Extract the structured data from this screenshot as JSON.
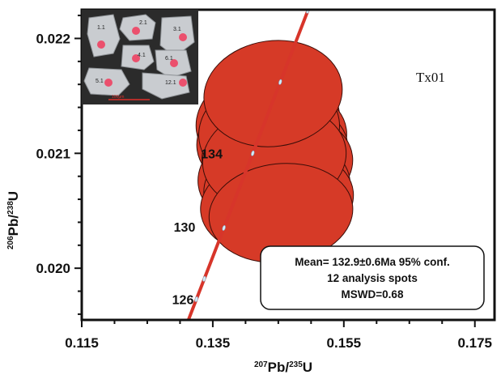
{
  "chart_data": {
    "type": "scatter",
    "subtype": "concordia",
    "sample_label": "Tx01",
    "xlabel_parts": {
      "sup": "207",
      "main": "Pb/",
      "sup2": "235",
      "main2": "U"
    },
    "ylabel_parts": {
      "sup": "206",
      "main": "Pb/",
      "sup2": "238",
      "main2": "U"
    },
    "xlim": [
      0.115,
      0.178
    ],
    "ylim": [
      0.01955,
      0.02225
    ],
    "x_ticks": [
      0.115,
      0.135,
      0.155,
      0.175
    ],
    "x_tick_labels": [
      "0.115",
      "0.135",
      "0.155",
      "0.175"
    ],
    "y_ticks": [
      0.02,
      0.021,
      0.022
    ],
    "y_tick_labels": [
      "0.020",
      "0.021",
      "0.022"
    ],
    "concordia_ages": [
      {
        "label": "126",
        "x": 0.1325,
        "y": 0.01973
      },
      {
        "label": "130",
        "x": 0.1367,
        "y": 0.02036
      },
      {
        "label": "134",
        "x": 0.1411,
        "y": 0.021
      }
    ],
    "error_ellipses": [
      {
        "cx": 0.1434,
        "cy": 0.02128,
        "rx": 0.011,
        "ry": 0.00047,
        "angle": -8
      },
      {
        "cx": 0.144,
        "cy": 0.02112,
        "rx": 0.0115,
        "ry": 0.00046,
        "angle": -8
      },
      {
        "cx": 0.1445,
        "cy": 0.021,
        "rx": 0.0112,
        "ry": 0.00045,
        "angle": -8
      },
      {
        "cx": 0.145,
        "cy": 0.0209,
        "rx": 0.0114,
        "ry": 0.00045,
        "angle": -7
      },
      {
        "cx": 0.1438,
        "cy": 0.0208,
        "rx": 0.0111,
        "ry": 0.00045,
        "angle": -7
      },
      {
        "cx": 0.1448,
        "cy": 0.0207,
        "rx": 0.0112,
        "ry": 0.00044,
        "angle": -6
      },
      {
        "cx": 0.1452,
        "cy": 0.0206,
        "rx": 0.0113,
        "ry": 0.00044,
        "angle": -6
      },
      {
        "cx": 0.144,
        "cy": 0.02055,
        "rx": 0.0109,
        "ry": 0.00043,
        "angle": -6
      },
      {
        "cx": 0.1436,
        "cy": 0.0212,
        "rx": 0.0108,
        "ry": 0.00047,
        "angle": -9
      },
      {
        "cx": 0.1444,
        "cy": 0.02096,
        "rx": 0.011,
        "ry": 0.00046,
        "angle": -8
      },
      {
        "cx": 0.1454,
        "cy": 0.02048,
        "rx": 0.011,
        "ry": 0.00043,
        "angle": -6
      },
      {
        "cx": 0.1442,
        "cy": 0.02152,
        "rx": 0.0106,
        "ry": 0.00046,
        "angle": -8
      }
    ],
    "stats": {
      "line1": "Mean= 132.9±0.6Ma 95% conf.",
      "line2": "12 analysis spots",
      "line3": "MSWD=0.68"
    },
    "inset": {
      "grain_numbers": [
        "1.1",
        "2.1",
        "3.1",
        "4.1",
        "5.1",
        "6.1",
        "12.1"
      ],
      "scale": "100μm"
    },
    "colors": {
      "ellipse_fill": "#d63a27",
      "concordia_line": "#d7352a",
      "age_marker": "#d6eef8",
      "inset_bg": "#2b2b2b",
      "grain": "#c9ccd0",
      "spot": "#ee4262"
    }
  }
}
